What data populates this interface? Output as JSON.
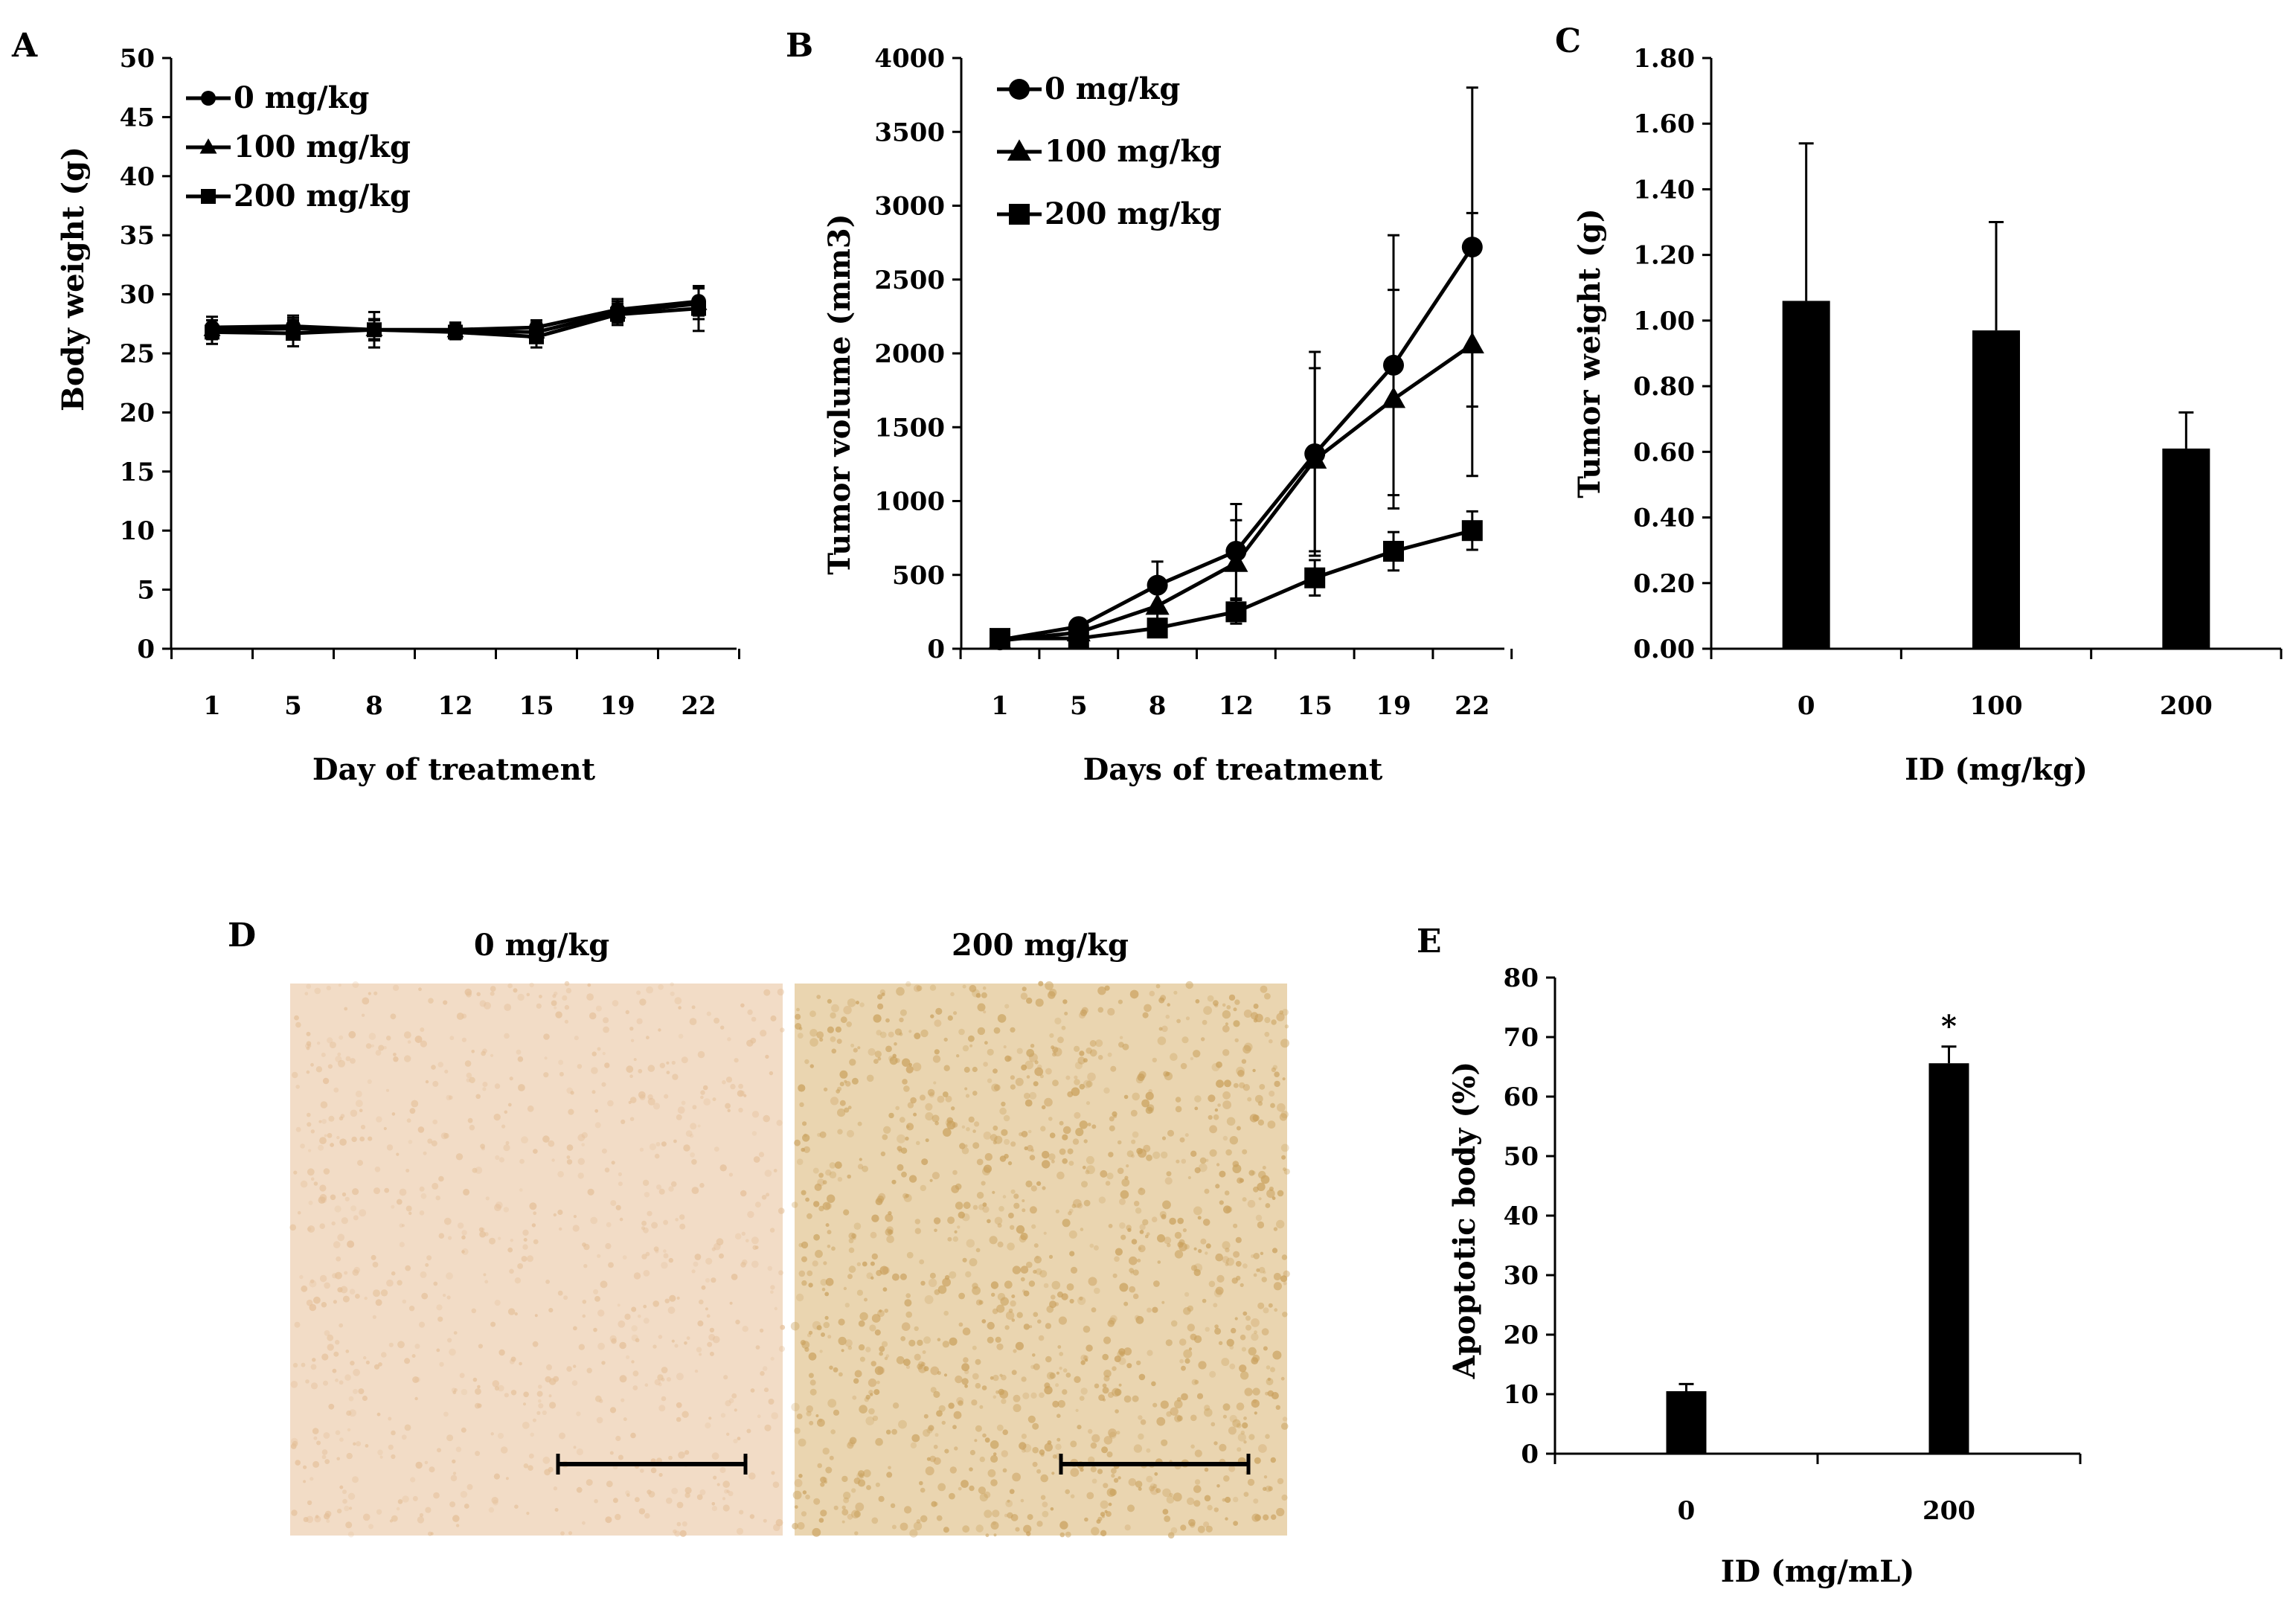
{
  "colors": {
    "ink": "#000000",
    "background": "#ffffff",
    "tissue_control": "#f2dcc6",
    "tissue_control_dot": "#e4bf98",
    "tissue_treated": "#ead5b0",
    "tissue_treated_dot": "#c9a05c"
  },
  "chart_data": [
    {
      "id": "A",
      "panel_letter": "A",
      "type": "line",
      "xlabel": "Day of treatment",
      "ylabel": "Body weight (g)",
      "categories": [
        "1",
        "5",
        "8",
        "12",
        "15",
        "19",
        "22"
      ],
      "ylim": [
        0,
        50
      ],
      "yticks": [
        "0",
        "5",
        "10",
        "15",
        "20",
        "25",
        "30",
        "35",
        "40",
        "45",
        "50"
      ],
      "ytick_values": [
        0,
        5,
        10,
        15,
        20,
        25,
        30,
        35,
        40,
        45,
        50
      ],
      "legend_position": "top-left",
      "series": [
        {
          "name": "0 mg/kg",
          "marker": "circle",
          "values": [
            27.2,
            27.3,
            27.0,
            27.0,
            27.2,
            28.7,
            29.4
          ],
          "errors": [
            0.9,
            0.9,
            0.8,
            0.6,
            0.6,
            0.9,
            1.2
          ]
        },
        {
          "name": "100 mg/kg",
          "marker": "triangle",
          "values": [
            27.0,
            27.1,
            27.0,
            26.9,
            26.8,
            28.5,
            29.2
          ],
          "errors": [
            0.8,
            0.9,
            1.5,
            0.7,
            0.8,
            0.9,
            1.3
          ]
        },
        {
          "name": "200 mg/kg",
          "marker": "square",
          "values": [
            26.8,
            26.7,
            27.0,
            26.8,
            26.4,
            28.3,
            28.8
          ],
          "errors": [
            1.0,
            1.1,
            0.9,
            0.6,
            0.9,
            0.9,
            1.9
          ]
        }
      ]
    },
    {
      "id": "B",
      "panel_letter": "B",
      "type": "line",
      "xlabel": "Days of treatment",
      "ylabel": "Tumor volume (mm3)",
      "categories": [
        "1",
        "5",
        "8",
        "12",
        "15",
        "19",
        "22"
      ],
      "ylim": [
        0,
        4000
      ],
      "yticks": [
        "0",
        "500",
        "1000",
        "1500",
        "2000",
        "2500",
        "3000",
        "3500",
        "4000"
      ],
      "ytick_values": [
        0,
        500,
        1000,
        1500,
        2000,
        2500,
        3000,
        3500,
        4000
      ],
      "legend_position": "top-left",
      "series": [
        {
          "name": "0 mg/kg",
          "marker": "circle",
          "values": [
            60,
            150,
            430,
            660,
            1320,
            1920,
            2720
          ],
          "errors": [
            30,
            40,
            160,
            320,
            690,
            880,
            1080
          ]
        },
        {
          "name": "100 mg/kg",
          "marker": "triangle",
          "values": [
            55,
            110,
            290,
            580,
            1280,
            1690,
            2060
          ],
          "errors": [
            25,
            40,
            130,
            290,
            620,
            740,
            890
          ]
        },
        {
          "name": "200 mg/kg",
          "marker": "square",
          "values": [
            70,
            70,
            140,
            250,
            480,
            660,
            800
          ],
          "errors": [
            30,
            30,
            60,
            80,
            120,
            130,
            130
          ]
        }
      ]
    },
    {
      "id": "C",
      "panel_letter": "C",
      "type": "bar",
      "xlabel": "ID (mg/kg)",
      "ylabel": "Tumor weight (g)",
      "categories": [
        "0",
        "100",
        "200"
      ],
      "values": [
        1.06,
        0.97,
        0.61
      ],
      "errors": [
        0.48,
        0.33,
        0.11
      ],
      "ylim": [
        0,
        1.8
      ],
      "yticks": [
        "0.00",
        "0.20",
        "0.40",
        "0.60",
        "0.80",
        "1.00",
        "1.20",
        "1.40",
        "1.60",
        "1.80"
      ],
      "ytick_values": [
        0,
        0.2,
        0.4,
        0.6,
        0.8,
        1.0,
        1.2,
        1.4,
        1.6,
        1.8
      ]
    },
    {
      "id": "E",
      "panel_letter": "E",
      "type": "bar",
      "xlabel": "ID (mg/mL)",
      "ylabel": "Apoptotic body (%)",
      "categories": [
        "0",
        "200"
      ],
      "values": [
        10.5,
        65.6
      ],
      "errors": [
        1.2,
        2.8
      ],
      "annotations": [
        "",
        "*"
      ],
      "ylim": [
        0,
        80
      ],
      "yticks": [
        "0",
        "10",
        "20",
        "30",
        "40",
        "50",
        "60",
        "70",
        "80"
      ],
      "ytick_values": [
        0,
        10,
        20,
        30,
        40,
        50,
        60,
        70,
        80
      ]
    }
  ],
  "panel_d": {
    "panel_letter": "D",
    "images": [
      {
        "label": "0  mg/kg",
        "description_name": "tunel-image-control"
      },
      {
        "label": "200  mg/kg",
        "description_name": "tunel-image-treated"
      }
    ]
  }
}
